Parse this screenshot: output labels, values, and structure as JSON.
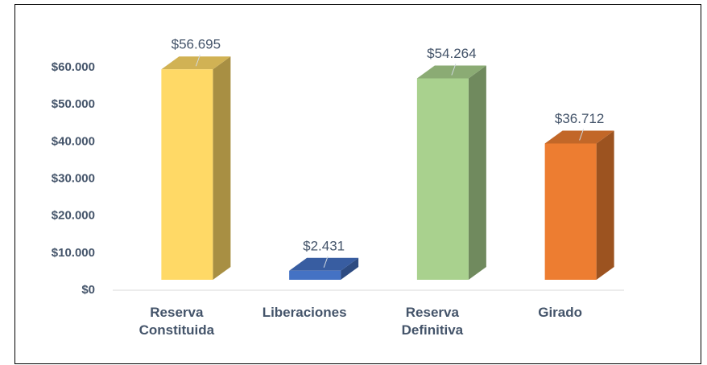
{
  "chart_data": {
    "type": "bar3d",
    "categories": [
      "Reserva Constituida",
      "Liberaciones",
      "Reserva Definitiva",
      "Girado"
    ],
    "values": [
      56695,
      2431,
      54264,
      36712
    ],
    "value_labels": [
      "$56.695",
      "$2.431",
      "$54.264",
      "$36.712"
    ],
    "colors": [
      "#ffd966",
      "#4472c4",
      "#a9d18e",
      "#ed7d31"
    ],
    "ylim": [
      0,
      60000
    ],
    "yticks": [
      {
        "value": 0,
        "label": "$0"
      },
      {
        "value": 10000,
        "label": "$10.000"
      },
      {
        "value": 20000,
        "label": "$20.000"
      },
      {
        "value": 30000,
        "label": "$30.000"
      },
      {
        "value": 40000,
        "label": "$40.000"
      },
      {
        "value": 50000,
        "label": "$50.000"
      },
      {
        "value": 60000,
        "label": "$60.000"
      }
    ]
  }
}
